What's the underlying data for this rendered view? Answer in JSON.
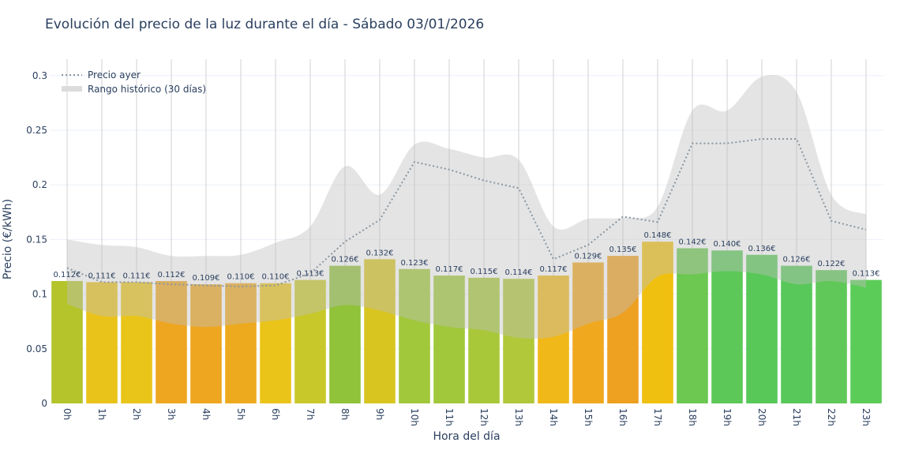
{
  "chart_data": {
    "type": "bar",
    "title": "Evolución del precio de la luz durante el día - Sábado 03/01/2026",
    "xlabel": "Hora del día",
    "ylabel": "Precio (€/kWh)",
    "ylim": [
      0,
      0.315
    ],
    "yticks": [
      0,
      0.05,
      0.1,
      0.15,
      0.2,
      0.25,
      0.3
    ],
    "ytick_labels": [
      "0",
      "0.05",
      "0.1",
      "0.15",
      "0.2",
      "0.25",
      "0.3"
    ],
    "grid": true,
    "legend_placement": "top-left",
    "categories": [
      "0h",
      "1h",
      "2h",
      "3h",
      "4h",
      "5h",
      "6h",
      "7h",
      "8h",
      "9h",
      "10h",
      "11h",
      "12h",
      "13h",
      "14h",
      "15h",
      "16h",
      "17h",
      "18h",
      "19h",
      "20h",
      "21h",
      "22h",
      "23h"
    ],
    "values": [
      0.112,
      0.111,
      0.111,
      0.112,
      0.109,
      0.11,
      0.11,
      0.113,
      0.126,
      0.132,
      0.123,
      0.117,
      0.115,
      0.114,
      0.117,
      0.129,
      0.135,
      0.148,
      0.142,
      0.14,
      0.136,
      0.126,
      0.122,
      0.113
    ],
    "data_labels": [
      "0.112€",
      "0.111€",
      "0.111€",
      "0.112€",
      "0.109€",
      "0.110€",
      "0.110€",
      "0.113€",
      "0.126€",
      "0.132€",
      "0.123€",
      "0.117€",
      "0.115€",
      "0.114€",
      "0.117€",
      "0.129€",
      "0.135€",
      "0.148€",
      "0.142€",
      "0.140€",
      "0.136€",
      "0.126€",
      "0.122€",
      "0.113€"
    ],
    "bar_colors": [
      "#b4c42a",
      "#e9c31a",
      "#e9c51a",
      "#eea620",
      "#eea620",
      "#eeaa1f",
      "#ebc41a",
      "#c8c82a",
      "#90c23a",
      "#d8c520",
      "#a0c83a",
      "#a0c83a",
      "#a8c83a",
      "#b0c83a",
      "#f0b818",
      "#f0a81e",
      "#eea020",
      "#f0c010",
      "#6cc850",
      "#5cc858",
      "#58c858",
      "#58c85a",
      "#60c858",
      "#5ccc58"
    ],
    "series": [
      {
        "name": "Precio ayer",
        "type": "line",
        "style": "dotted",
        "color": "#8a96a0",
        "values": [
          0.124,
          0.111,
          0.111,
          0.109,
          0.108,
          0.107,
          0.108,
          0.119,
          0.148,
          0.168,
          0.221,
          0.214,
          0.204,
          0.197,
          0.132,
          0.145,
          0.171,
          0.166,
          0.238,
          0.238,
          0.242,
          0.242,
          0.167,
          0.159
        ]
      },
      {
        "name": "Rango histórico (30 días)",
        "type": "band",
        "color": "#d3d3d3",
        "upper": [
          0.15,
          0.145,
          0.143,
          0.135,
          0.135,
          0.136,
          0.147,
          0.162,
          0.217,
          0.191,
          0.237,
          0.233,
          0.225,
          0.223,
          0.162,
          0.169,
          0.17,
          0.18,
          0.268,
          0.268,
          0.299,
          0.285,
          0.191,
          0.173
        ],
        "lower": [
          0.091,
          0.08,
          0.08,
          0.073,
          0.07,
          0.073,
          0.076,
          0.082,
          0.09,
          0.085,
          0.076,
          0.07,
          0.067,
          0.06,
          0.061,
          0.073,
          0.083,
          0.116,
          0.118,
          0.121,
          0.118,
          0.109,
          0.112,
          0.106
        ]
      }
    ]
  }
}
